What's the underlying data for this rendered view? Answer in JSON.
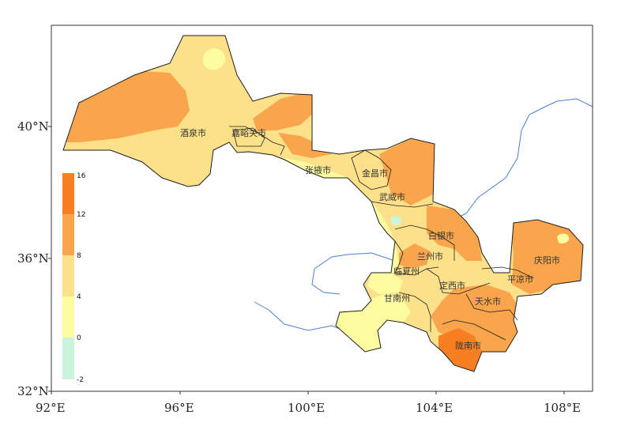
{
  "colors": {
    "c_neg2_0": "#c9f5dc",
    "c_0_4": "#fdfca0",
    "c_4_8": "#fde08a",
    "c_8_12": "#f9a54c",
    "c_12_16": "#f77f22",
    "river": "#4a7fd4",
    "boundary": "#1f1f1f"
  },
  "axes": {
    "x_ticks": [
      "92°E",
      "96°E",
      "100°E",
      "104°E",
      "108°E"
    ],
    "y_ticks": [
      "32°N",
      "36°N",
      "40°N"
    ]
  },
  "legend": {
    "labels": [
      "16",
      "12",
      "8",
      "4",
      "0",
      "-2"
    ]
  },
  "cities": [
    {
      "name": "酒泉市",
      "id": "jiuquan"
    },
    {
      "name": "嘉峪关市",
      "id": "jiayuguan"
    },
    {
      "name": "张掖市",
      "id": "zhangye"
    },
    {
      "name": "金昌市",
      "id": "jinchang"
    },
    {
      "name": "武威市",
      "id": "wuwei"
    },
    {
      "name": "白银市",
      "id": "baiyin"
    },
    {
      "name": "兰州市",
      "id": "lanzhou"
    },
    {
      "name": "临夏州",
      "id": "linxia"
    },
    {
      "name": "定西市",
      "id": "dingxi"
    },
    {
      "name": "庆阳市",
      "id": "qingyang"
    },
    {
      "name": "平凉市",
      "id": "pingliang"
    },
    {
      "name": "天水市",
      "id": "tianshui"
    },
    {
      "name": "甘南州",
      "id": "gannan"
    },
    {
      "name": "陇南市",
      "id": "longnan"
    }
  ]
}
